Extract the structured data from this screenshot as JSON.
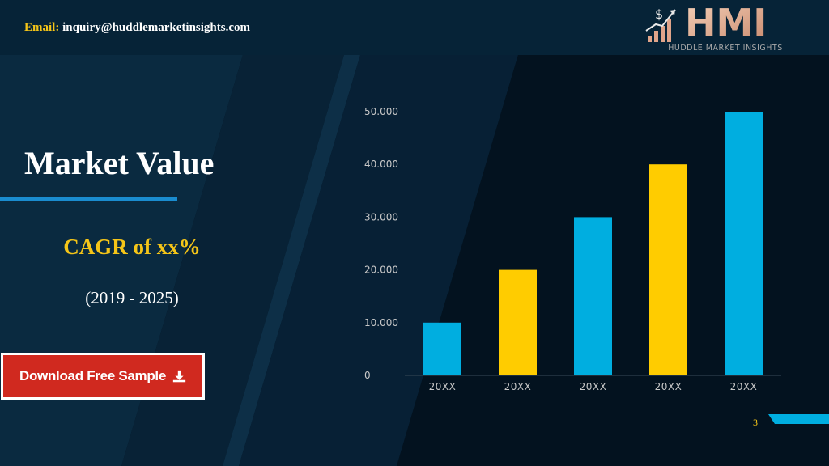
{
  "header": {
    "email_label": "Email:",
    "email_value": "inquiry@huddlemarketinsights.com"
  },
  "logo": {
    "text": "HMI",
    "tagline": "HUDDLE MARKET INSIGHTS",
    "currency_symbol": "$"
  },
  "main": {
    "title": "Market Value",
    "cagr": "CAGR of xx%",
    "period": "(2019 - 2025)"
  },
  "cta": {
    "label": "Download Free Sample",
    "icon": "download-icon"
  },
  "page_number": "3",
  "colors": {
    "accent_yellow": "#f5c518",
    "accent_blue": "#00aee0",
    "bar_yellow": "#ffcc00",
    "button_red": "#d0291f",
    "background": "#03121f"
  },
  "chart_data": {
    "type": "bar",
    "categories": [
      "20XX",
      "20XX",
      "20XX",
      "20XX",
      "20XX"
    ],
    "values": [
      10000,
      20000,
      30000,
      40000,
      50000
    ],
    "bar_colors": [
      "#00aee0",
      "#ffcc00",
      "#00aee0",
      "#ffcc00",
      "#00aee0"
    ],
    "y_ticks": [
      "0",
      "10.000",
      "20.000",
      "30.000",
      "40.000",
      "50.000"
    ],
    "ylim": [
      0,
      50000
    ],
    "grid": false,
    "legend": "none",
    "title": "",
    "xlabel": "",
    "ylabel": ""
  }
}
